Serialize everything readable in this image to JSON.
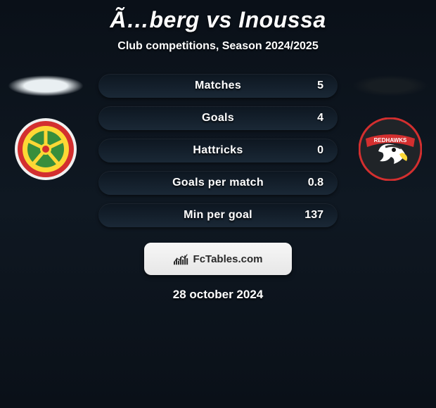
{
  "header": {
    "title": "Ã…berg vs Inoussa",
    "subtitle": "Club competitions, Season 2024/2025"
  },
  "left_ellipse_color": "#e9eff2",
  "right_ellipse_color": "#171d22",
  "stats": {
    "bar_style": {
      "height": 34,
      "radius": 17,
      "bg_gradient_top": "#0d1620",
      "bg_gradient_bottom": "#1a2836",
      "label_fontsize": 16,
      "label_color": "#ffffff",
      "value_fontsize": 16,
      "value_color": "#ffffff"
    },
    "rows": [
      {
        "label": "Matches",
        "left": "",
        "right": "5"
      },
      {
        "label": "Goals",
        "left": "",
        "right": "4"
      },
      {
        "label": "Hattricks",
        "left": "",
        "right": "0"
      },
      {
        "label": "Goals per match",
        "left": "",
        "right": "0.8"
      },
      {
        "label": "Min per goal",
        "left": "",
        "right": "137"
      }
    ]
  },
  "left_club": {
    "logo_bg": "#f0f0f0",
    "ring_outer": "#d32f2f",
    "ring_inner": "#fdd835",
    "center": "#388e3c",
    "spokes": "#fdd835"
  },
  "right_club": {
    "logo_bg": "#111418",
    "ring_outer": "#d32f2f",
    "banner": "#d32f2f",
    "head": "#ffffff",
    "beak": "#fdd835",
    "text": "REDHAWKS",
    "text_color": "#ffffff"
  },
  "footer": {
    "brand": "FcTables.com",
    "icon_bars": [
      5,
      9,
      6,
      12,
      8,
      14,
      10
    ],
    "icon_bar_color": "#2a2a2a",
    "date": "28 october 2024"
  },
  "background": {
    "gradient_top": "#0a1018",
    "gradient_mid": "#0f1822",
    "gradient_bottom": "#0a1018"
  }
}
